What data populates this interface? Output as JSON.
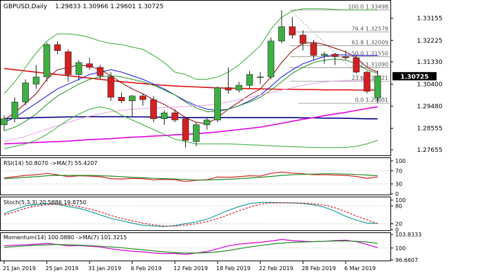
{
  "header": {
    "symbol": "GBPUSD,Daily",
    "ohlc": "1.29833 1.30966 1.29601 1.30725"
  },
  "colors": {
    "bull": "#3cb043",
    "bear": "#d42020",
    "wick": "#222222",
    "ma_red": "#e01010",
    "ma_blue": "#1010e0",
    "ma_darkred": "#8b0000",
    "ma_green": "#228b22",
    "ma_navy": "#000080",
    "ma_magenta": "#e000e0",
    "ma_pink": "#e9a0e9",
    "band": "#33aa33",
    "fib": "#888888",
    "current_bg": "#000000",
    "current_text": "#ffffff",
    "stoch_main": "#20a0a0",
    "stoch_signal": "#d02020",
    "ind_green": "#228b22",
    "ind_red": "#d42020",
    "ind_magenta": "#d000d0"
  },
  "chart_data": [
    {
      "type": "candlestick",
      "title": "GBPUSD,Daily",
      "x": [
        "21 Jan 2019",
        "22 Jan",
        "23 Jan",
        "24 Jan",
        "25 Jan",
        "28 Jan",
        "29 Jan",
        "30 Jan",
        "31 Jan",
        "1 Feb",
        "4 Feb",
        "5 Feb",
        "6 Feb",
        "7 Feb",
        "8 Feb",
        "11 Feb",
        "12 Feb",
        "13 Feb",
        "14 Feb",
        "15 Feb",
        "18 Feb",
        "19 Feb",
        "20 Feb",
        "21 Feb",
        "22 Feb",
        "25 Feb",
        "26 Feb",
        "27 Feb",
        "28 Feb",
        "1 Mar",
        "4 Mar",
        "5 Mar",
        "6 Mar",
        "7 Mar",
        "8 Mar",
        "11 Mar"
      ],
      "candles": [
        {
          "o": 1.287,
          "h": 1.291,
          "l": 1.2845,
          "c": 1.2895
        },
        {
          "o": 1.2895,
          "h": 1.2985,
          "l": 1.288,
          "c": 1.2965
        },
        {
          "o": 1.2965,
          "h": 1.306,
          "l": 1.295,
          "c": 1.3045
        },
        {
          "o": 1.304,
          "h": 1.312,
          "l": 1.302,
          "c": 1.307
        },
        {
          "o": 1.307,
          "h": 1.3215,
          "l": 1.305,
          "c": 1.3205
        },
        {
          "o": 1.3205,
          "h": 1.3218,
          "l": 1.3165,
          "c": 1.318
        },
        {
          "o": 1.3175,
          "h": 1.3185,
          "l": 1.305,
          "c": 1.308
        },
        {
          "o": 1.308,
          "h": 1.314,
          "l": 1.3055,
          "c": 1.313
        },
        {
          "o": 1.3125,
          "h": 1.315,
          "l": 1.31,
          "c": 1.311
        },
        {
          "o": 1.311,
          "h": 1.312,
          "l": 1.306,
          "c": 1.3075
        },
        {
          "o": 1.307,
          "h": 1.309,
          "l": 1.297,
          "c": 1.2985
        },
        {
          "o": 1.2985,
          "h": 1.3005,
          "l": 1.296,
          "c": 1.297
        },
        {
          "o": 1.297,
          "h": 1.2995,
          "l": 1.2905,
          "c": 1.299
        },
        {
          "o": 1.299,
          "h": 1.3,
          "l": 1.295,
          "c": 1.2975
        },
        {
          "o": 1.2975,
          "h": 1.299,
          "l": 1.288,
          "c": 1.2895
        },
        {
          "o": 1.2895,
          "h": 1.293,
          "l": 1.287,
          "c": 1.292
        },
        {
          "o": 1.292,
          "h": 1.2935,
          "l": 1.288,
          "c": 1.289
        },
        {
          "o": 1.2895,
          "h": 1.29,
          "l": 1.2775,
          "c": 1.2805
        },
        {
          "o": 1.28,
          "h": 1.288,
          "l": 1.278,
          "c": 1.287
        },
        {
          "o": 1.287,
          "h": 1.29,
          "l": 1.285,
          "c": 1.289
        },
        {
          "o": 1.289,
          "h": 1.303,
          "l": 1.288,
          "c": 1.3025
        },
        {
          "o": 1.3025,
          "h": 1.311,
          "l": 1.3,
          "c": 1.3015
        },
        {
          "o": 1.3015,
          "h": 1.305,
          "l": 1.3005,
          "c": 1.3035
        },
        {
          "o": 1.3035,
          "h": 1.3095,
          "l": 1.302,
          "c": 1.308
        },
        {
          "o": 1.307,
          "h": 1.309,
          "l": 1.304,
          "c": 1.307
        },
        {
          "o": 1.307,
          "h": 1.3235,
          "l": 1.306,
          "c": 1.322
        },
        {
          "o": 1.322,
          "h": 1.3349,
          "l": 1.321,
          "c": 1.328
        },
        {
          "o": 1.328,
          "h": 1.332,
          "l": 1.323,
          "c": 1.3245
        },
        {
          "o": 1.3245,
          "h": 1.3265,
          "l": 1.318,
          "c": 1.321
        },
        {
          "o": 1.321,
          "h": 1.3225,
          "l": 1.314,
          "c": 1.316
        },
        {
          "o": 1.316,
          "h": 1.3175,
          "l": 1.3125,
          "c": 1.3165
        },
        {
          "o": 1.3165,
          "h": 1.317,
          "l": 1.312,
          "c": 1.3155
        },
        {
          "o": 1.3155,
          "h": 1.318,
          "l": 1.314,
          "c": 1.315
        },
        {
          "o": 1.315,
          "h": 1.316,
          "l": 1.3085,
          "c": 1.309
        },
        {
          "o": 1.309,
          "h": 1.3095,
          "l": 1.3,
          "c": 1.301
        },
        {
          "o": 1.2983,
          "h": 1.3097,
          "l": 1.296,
          "c": 1.3073
        }
      ],
      "y_axis_ticks": [
        "1.33155",
        "1.32225",
        "1.31330",
        "1.30400",
        "1.29480",
        "1.28555",
        "1.27655"
      ],
      "ylim": [
        1.2745,
        1.338
      ],
      "current_price_label": "1.30725",
      "fibonacci": [
        {
          "label": "100.0 1.33498",
          "value": 1.33498
        },
        {
          "label": "76.4 1.32578",
          "value": 1.32578
        },
        {
          "label": "61.8 1.32009",
          "value": 1.32009
        },
        {
          "label": "50.0 1.31550",
          "value": 1.3155
        },
        {
          "label": "38.2 1.31090",
          "value": 1.3109
        },
        {
          "label": "23.6 1.30521",
          "value": 1.30521
        },
        {
          "label": "0.0 1.29601",
          "value": 1.29601
        }
      ],
      "lines": [
        {
          "name": "ma_red",
          "color": "#e01010",
          "values": [
            1.3105,
            1.31,
            1.3095,
            1.309,
            1.3085,
            1.308,
            1.3075,
            1.307,
            1.3065,
            1.306,
            1.3055,
            1.305,
            1.3046,
            1.3042,
            1.3038,
            1.3035,
            1.3032,
            1.303,
            1.3028,
            1.3026,
            1.3024,
            1.3023,
            1.3022,
            1.3021,
            1.302,
            1.3019,
            1.3018,
            1.3018,
            1.3017,
            1.3017,
            1.3016,
            1.3016,
            1.3016,
            1.3015,
            1.3015,
            1.3015
          ]
        },
        {
          "name": "ma_blue",
          "color": "#1010e0",
          "values": [
            1.288,
            1.29,
            1.293,
            1.296,
            1.299,
            1.302,
            1.304,
            1.306,
            1.308,
            1.309,
            1.31,
            1.309,
            1.3075,
            1.306,
            1.304,
            1.302,
            1.2995,
            1.297,
            1.295,
            1.2935,
            1.293,
            1.2935,
            1.295,
            1.297,
            1.2995,
            1.303,
            1.307,
            1.31,
            1.3125,
            1.314,
            1.3155,
            1.3162,
            1.3162,
            1.316,
            1.316,
            1.316
          ]
        },
        {
          "name": "ma_darkred",
          "color": "#8b0000",
          "values": [
            1.289,
            1.292,
            1.296,
            1.3,
            1.306,
            1.31,
            1.311,
            1.312,
            1.3115,
            1.31,
            1.3075,
            1.3045,
            1.302,
            1.3,
            1.2975,
            1.2955,
            1.293,
            1.29,
            1.288,
            1.2875,
            1.29,
            1.2935,
            1.2965,
            1.2995,
            1.302,
            1.307,
            1.313,
            1.318,
            1.321,
            1.3215,
            1.3205,
            1.319,
            1.3175,
            1.315,
            1.311,
            1.309
          ]
        },
        {
          "name": "ma_green",
          "color": "#228b22",
          "values": [
            1.2845,
            1.286,
            1.2885,
            1.2915,
            1.2955,
            1.299,
            1.3015,
            1.304,
            1.306,
            1.307,
            1.3075,
            1.307,
            1.306,
            1.305,
            1.3035,
            1.3015,
            1.2995,
            1.2965,
            1.294,
            1.2925,
            1.2925,
            1.2935,
            1.295,
            1.2965,
            1.2985,
            1.3015,
            1.305,
            1.3085,
            1.311,
            1.313,
            1.314,
            1.3145,
            1.314,
            1.3125,
            1.31,
            1.3085
          ]
        },
        {
          "name": "ma_navy",
          "color": "#000080",
          "values": [
            1.2895,
            1.2897,
            1.2898,
            1.29,
            1.2901,
            1.2902,
            1.2903,
            1.2903,
            1.2904,
            1.2904,
            1.2904,
            1.2904,
            1.2903,
            1.2903,
            1.2902,
            1.2902,
            1.2901,
            1.29,
            1.29,
            1.29,
            1.29,
            1.29,
            1.29,
            1.29,
            1.29,
            1.29,
            1.29,
            1.29,
            1.2899,
            1.2899,
            1.2898,
            1.2898,
            1.2897,
            1.2896,
            1.2895,
            1.2895
          ]
        },
        {
          "name": "ma_magenta",
          "color": "#e000e0",
          "values": [
            1.279,
            1.2792,
            1.2794,
            1.2796,
            1.2798,
            1.28,
            1.2802,
            1.2805,
            1.2808,
            1.281,
            1.2812,
            1.2815,
            1.2818,
            1.282,
            1.2823,
            1.2825,
            1.2828,
            1.283,
            1.2833,
            1.2836,
            1.284,
            1.2845,
            1.285,
            1.2855,
            1.286,
            1.2868,
            1.2876,
            1.2885,
            1.2893,
            1.29,
            1.2908,
            1.2915,
            1.2922,
            1.293,
            1.2938,
            1.2945
          ]
        },
        {
          "name": "ma_pink",
          "color": "#e9a0e9",
          "values": [
            1.28,
            1.281,
            1.2822,
            1.2836,
            1.2852,
            1.2866,
            1.288,
            1.2894,
            1.2906,
            1.2916,
            1.2925,
            1.293,
            1.2935,
            1.2938,
            1.294,
            1.2942,
            1.2944,
            1.2946,
            1.2948,
            1.2952,
            1.2958,
            1.2966,
            1.2975,
            1.2985,
            1.2995,
            1.3005,
            1.3015,
            1.3025,
            1.3035,
            1.3043,
            1.3049,
            1.3053,
            1.3055,
            1.3056,
            1.3056,
            1.3056
          ]
        },
        {
          "name": "band_upper",
          "color": "#33aa33",
          "values": [
            1.3,
            1.305,
            1.311,
            1.317,
            1.322,
            1.325,
            1.325,
            1.3245,
            1.3235,
            1.322,
            1.321,
            1.3205,
            1.3195,
            1.3185,
            1.316,
            1.313,
            1.309,
            1.308,
            1.306,
            1.306,
            1.307,
            1.309,
            1.312,
            1.316,
            1.32,
            1.327,
            1.332,
            1.3345,
            1.3355,
            1.3355,
            1.3355,
            1.3352,
            1.335,
            1.335,
            1.335,
            1.335
          ]
        },
        {
          "name": "band_lower",
          "color": "#33aa33",
          "values": [
            1.277,
            1.278,
            1.279,
            1.2805,
            1.283,
            1.286,
            1.289,
            1.2915,
            1.2935,
            1.2945,
            1.2935,
            1.291,
            1.289,
            1.287,
            1.285,
            1.283,
            1.281,
            1.28,
            1.279,
            1.279,
            1.279,
            1.279,
            1.2788,
            1.2786,
            1.2785,
            1.2782,
            1.278,
            1.2778,
            1.2777,
            1.2775,
            1.2775,
            1.2775,
            1.2775,
            1.278,
            1.279,
            1.2805
          ]
        }
      ]
    },
    {
      "type": "line",
      "title": "RSI(14) 50.8070 ->MA(7) 55.4207",
      "y_axis_ticks": [
        "100",
        "70",
        "30",
        "0"
      ],
      "ylim": [
        0,
        100
      ],
      "series": [
        {
          "name": "RSI(14)",
          "color": "#d42020",
          "values": [
            48,
            52,
            56,
            58,
            62,
            58,
            52,
            55,
            54,
            52,
            46,
            45,
            47,
            46,
            42,
            44,
            43,
            37,
            41,
            43,
            51,
            50,
            52,
            55,
            54,
            62,
            66,
            63,
            61,
            58,
            58,
            57,
            56,
            53,
            47,
            51
          ]
        },
        {
          "name": "MA(7)",
          "color": "#228b22",
          "values": [
            46,
            48,
            50,
            52,
            55,
            56,
            56,
            56,
            56,
            55,
            54,
            52,
            50,
            49,
            47,
            46,
            45,
            43,
            42,
            42,
            43,
            44,
            46,
            48,
            50,
            53,
            56,
            58,
            59,
            60,
            61,
            61,
            60,
            59,
            57,
            55
          ]
        }
      ]
    },
    {
      "type": "line",
      "title": "Stoch(5,3,3) 20.5886 19.8750",
      "y_axis_ticks": [
        "100",
        "80",
        "20",
        "0"
      ],
      "ylim": [
        0,
        100
      ],
      "series": [
        {
          "name": "Stoch main",
          "color": "#20a0a0",
          "values": [
            55,
            68,
            80,
            85,
            88,
            86,
            78,
            72,
            62,
            50,
            38,
            30,
            22,
            15,
            12,
            10,
            14,
            20,
            26,
            35,
            50,
            65,
            78,
            88,
            92,
            92,
            91,
            90,
            88,
            84,
            76,
            62,
            45,
            32,
            22,
            21
          ]
        },
        {
          "name": "Stoch signal",
          "color": "#d02020",
          "values": [
            50,
            60,
            72,
            80,
            85,
            86,
            84,
            78,
            70,
            60,
            48,
            38,
            30,
            22,
            16,
            12,
            12,
            15,
            20,
            27,
            37,
            50,
            64,
            76,
            86,
            90,
            91,
            91,
            90,
            87,
            83,
            74,
            61,
            46,
            33,
            20
          ]
        }
      ]
    },
    {
      "type": "line",
      "title": "Momentum(14) 100.0880 ->MA(7) 101.3215",
      "y_axis_ticks": [
        "103.8333",
        "100",
        "96.6607"
      ],
      "ylim": [
        96.6607,
        103.8333
      ],
      "series": [
        {
          "name": "Momentum(14)",
          "color": "#d000d0",
          "values": [
            100.6,
            100.8,
            100.9,
            101.1,
            101.3,
            101.0,
            100.6,
            100.7,
            100.5,
            100.3,
            99.8,
            99.4,
            99.1,
            98.9,
            98.6,
            98.4,
            98.5,
            98.2,
            98.6,
            99.0,
            99.8,
            100.6,
            101.1,
            101.4,
            101.6,
            102.0,
            102.4,
            102.1,
            101.9,
            101.8,
            101.9,
            102.1,
            102.2,
            101.8,
            101.0,
            100.1
          ]
        },
        {
          "name": "MA(7)",
          "color": "#228b22",
          "values": [
            100.2,
            100.4,
            100.6,
            100.8,
            100.9,
            101.0,
            100.9,
            100.8,
            100.7,
            100.5,
            100.3,
            100.1,
            99.8,
            99.5,
            99.2,
            98.9,
            98.7,
            98.6,
            98.6,
            98.7,
            98.9,
            99.3,
            99.8,
            100.3,
            100.7,
            101.1,
            101.4,
            101.6,
            101.7,
            101.8,
            101.9,
            102.0,
            102.0,
            101.9,
            101.7,
            101.3
          ]
        }
      ]
    }
  ],
  "x_axis": {
    "labels": [
      {
        "text": "21 Jan 2019",
        "idx": 0
      },
      {
        "text": "25 Jan 2019",
        "idx": 4
      },
      {
        "text": "31 Jan 2019",
        "idx": 8
      },
      {
        "text": "6 Feb 2019",
        "idx": 12
      },
      {
        "text": "12 Feb 2019",
        "idx": 16
      },
      {
        "text": "18 Feb 2019",
        "idx": 20
      },
      {
        "text": "22 Feb 2019",
        "idx": 24
      },
      {
        "text": "28 Feb 2019",
        "idx": 28
      },
      {
        "text": "6 Mar 2019",
        "idx": 32
      }
    ]
  }
}
